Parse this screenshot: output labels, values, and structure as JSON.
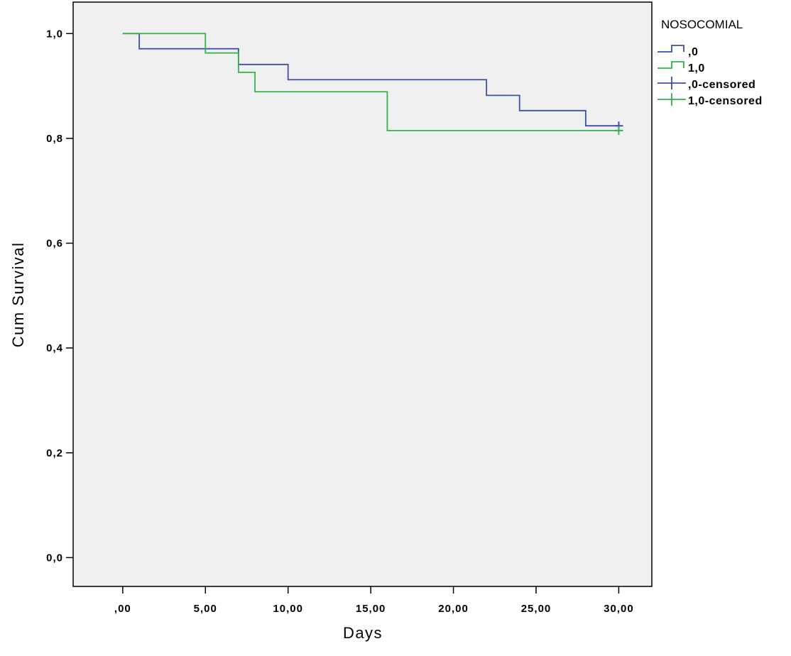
{
  "chart_data": {
    "type": "line",
    "step": true,
    "title": "",
    "xlabel": "Days",
    "ylabel": "Cum Survival",
    "xlim": [
      -3,
      32
    ],
    "ylim": [
      -0.055,
      1.06
    ],
    "x_ticks": [
      0,
      5,
      10,
      15,
      20,
      25,
      30
    ],
    "x_tick_labels": [
      ",00",
      "5,00",
      "10,00",
      "15,00",
      "20,00",
      "25,00",
      "30,00"
    ],
    "y_ticks": [
      0.0,
      0.2,
      0.4,
      0.6,
      0.8,
      1.0
    ],
    "y_tick_labels": [
      "0,0",
      "0,2",
      "0,4",
      "0,6",
      "0,8",
      "1,0"
    ],
    "grid": false,
    "plot_background": "#f0f0f0",
    "legend": {
      "title": "NOSOCOMIAL",
      "placement": "top-right",
      "entries": [
        {
          "label": ",0",
          "kind": "step",
          "color": "#3c50a8"
        },
        {
          "label": "1,0",
          "kind": "step",
          "color": "#33b24a"
        },
        {
          "label": ",0-censored",
          "kind": "censor",
          "color": "#3c50a8"
        },
        {
          "label": "1,0-censored",
          "kind": "censor",
          "color": "#33b24a"
        }
      ]
    },
    "series": [
      {
        "name": ",0",
        "color": "#3c50a8",
        "x": [
          0,
          1,
          7,
          10,
          22,
          24,
          28,
          30
        ],
        "y": [
          1.0,
          0.971,
          0.941,
          0.912,
          0.882,
          0.853,
          0.824,
          0.824
        ],
        "censored": [
          {
            "x": 30,
            "y": 0.824
          }
        ]
      },
      {
        "name": "1,0",
        "color": "#33b24a",
        "x": [
          0,
          5,
          7,
          8,
          16,
          30
        ],
        "y": [
          1.0,
          0.963,
          0.926,
          0.889,
          0.815,
          0.815
        ],
        "censored": [
          {
            "x": 30,
            "y": 0.815
          }
        ]
      }
    ]
  }
}
